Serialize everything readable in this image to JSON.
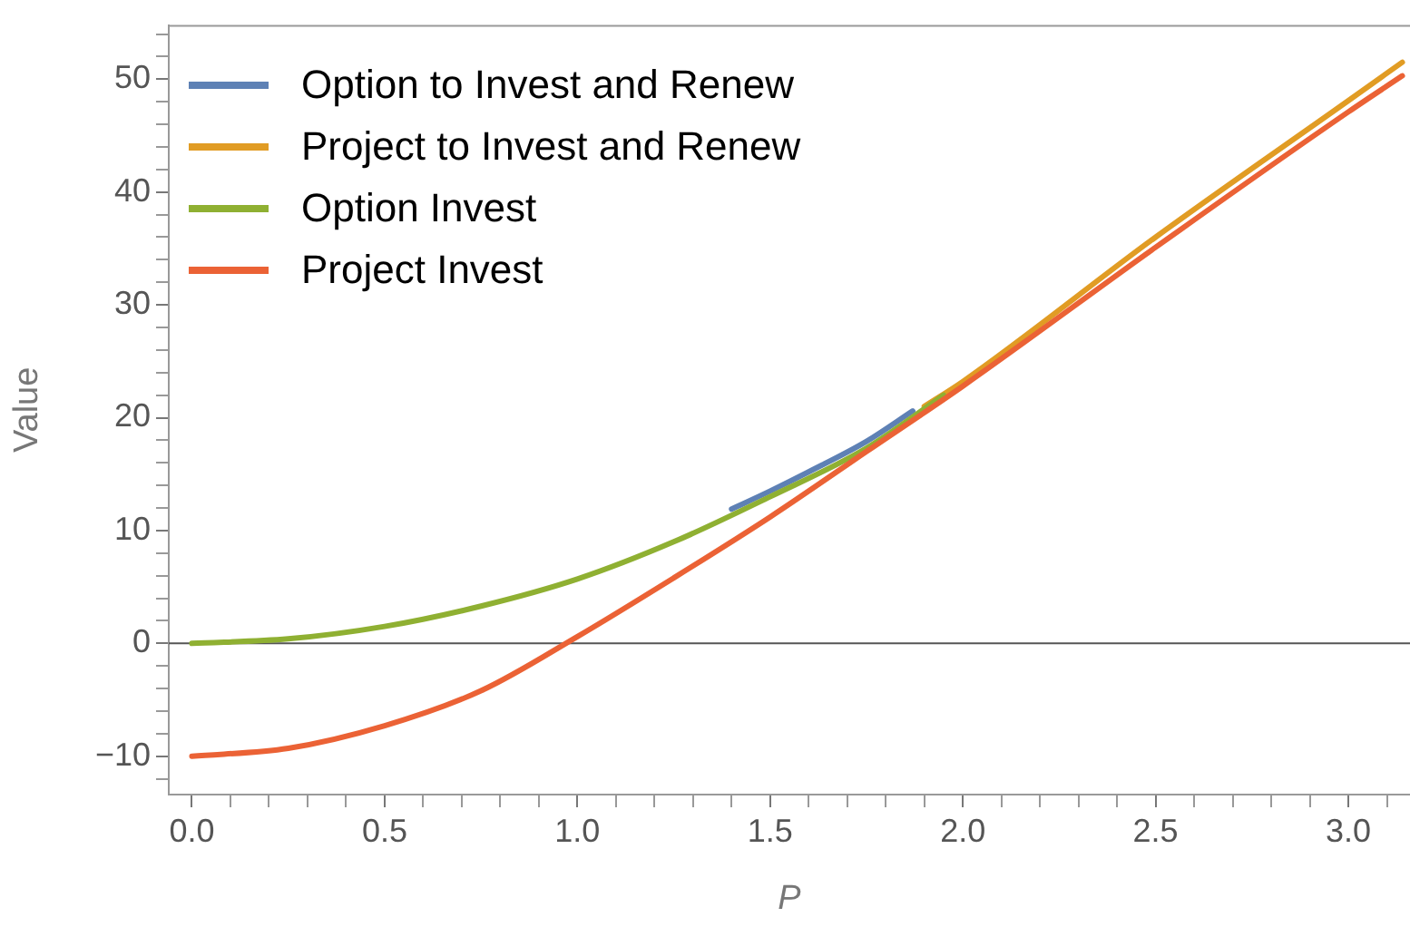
{
  "chart_data": {
    "type": "line",
    "xlabel": "P",
    "ylabel": "Value",
    "xlim": [
      -0.06,
      3.16
    ],
    "ylim": [
      -13.4,
      54.8
    ],
    "xticks": [
      {
        "value": 0,
        "label": "0.0"
      },
      {
        "value": 0.1,
        "label": null
      },
      {
        "value": 0.2,
        "label": null
      },
      {
        "value": 0.3,
        "label": null
      },
      {
        "value": 0.4,
        "label": null
      },
      {
        "value": 0.5,
        "label": "0.5"
      },
      {
        "value": 0.6,
        "label": null
      },
      {
        "value": 0.7,
        "label": null
      },
      {
        "value": 0.8,
        "label": null
      },
      {
        "value": 0.9,
        "label": null
      },
      {
        "value": 1,
        "label": "1.0"
      },
      {
        "value": 1.1,
        "label": null
      },
      {
        "value": 1.2,
        "label": null
      },
      {
        "value": 1.3,
        "label": null
      },
      {
        "value": 1.4,
        "label": null
      },
      {
        "value": 1.5,
        "label": "1.5"
      },
      {
        "value": 1.6,
        "label": null
      },
      {
        "value": 1.7,
        "label": null
      },
      {
        "value": 1.8,
        "label": null
      },
      {
        "value": 1.9,
        "label": null
      },
      {
        "value": 2,
        "label": "2.0"
      },
      {
        "value": 2.1,
        "label": null
      },
      {
        "value": 2.2,
        "label": null
      },
      {
        "value": 2.3,
        "label": null
      },
      {
        "value": 2.4,
        "label": null
      },
      {
        "value": 2.5,
        "label": "2.5"
      },
      {
        "value": 2.6,
        "label": null
      },
      {
        "value": 2.7,
        "label": null
      },
      {
        "value": 2.8,
        "label": null
      },
      {
        "value": 2.9,
        "label": null
      },
      {
        "value": 3,
        "label": "3.0"
      },
      {
        "value": 3.1,
        "label": null
      }
    ],
    "yticks": [
      {
        "value": -12,
        "label": null
      },
      {
        "value": -10,
        "label": "−10"
      },
      {
        "value": -8,
        "label": null
      },
      {
        "value": -6,
        "label": null
      },
      {
        "value": -4,
        "label": null
      },
      {
        "value": -2,
        "label": null
      },
      0,
      {
        "value": 2,
        "label": null
      },
      {
        "value": 4,
        "label": null
      },
      {
        "value": 6,
        "label": null
      },
      {
        "value": 8,
        "label": null
      },
      10,
      {
        "value": 12,
        "label": null
      },
      {
        "value": 14,
        "label": null
      },
      {
        "value": 16,
        "label": null
      },
      {
        "value": 18,
        "label": null
      },
      20,
      {
        "value": 22,
        "label": null
      },
      {
        "value": 24,
        "label": null
      },
      {
        "value": 26,
        "label": null
      },
      {
        "value": 28,
        "label": null
      },
      30,
      {
        "value": 32,
        "label": null
      },
      {
        "value": 34,
        "label": null
      },
      {
        "value": 36,
        "label": null
      },
      {
        "value": 38,
        "label": null
      },
      40,
      {
        "value": 42,
        "label": null
      },
      {
        "value": 44,
        "label": null
      },
      {
        "value": 46,
        "label": null
      },
      {
        "value": 48,
        "label": null
      },
      50,
      {
        "value": 52,
        "label": null
      },
      {
        "value": 54,
        "label": null
      }
    ],
    "grid": false,
    "legend": "top left",
    "marker": "none",
    "line_style": "solid",
    "ref_lines": [
      {
        "axis": "y",
        "value": 0,
        "color": "#555555"
      }
    ],
    "series": [
      {
        "name": "Option to Invest and Renew",
        "color": "#5e81b5",
        "x": [
          1.4,
          1.5,
          1.6,
          1.75,
          1.87
        ],
        "values": [
          11.9,
          13.5,
          15.2,
          17.9,
          20.6
        ]
      },
      {
        "name": "Project to Invest and Renew",
        "color": "#e19c24",
        "x": [
          1.9,
          2,
          2.5,
          3,
          3.14
        ],
        "values": [
          21.0,
          23.2,
          36.0,
          48.1,
          51.5
        ]
      },
      {
        "name": "Option Invest",
        "color": "#8fb032",
        "x": [
          0,
          0.25,
          0.5,
          0.75,
          1,
          1.25,
          1.5,
          1.75,
          1.95
        ],
        "values": [
          0,
          0.4,
          1.5,
          3.3,
          5.7,
          9.0,
          13.0,
          17.3,
          22.0
        ]
      },
      {
        "name": "Project Invest",
        "color": "#eb6235",
        "x": [
          0,
          0.25,
          0.5,
          0.75,
          1,
          1.25,
          1.5,
          1.75,
          2,
          2.5,
          3,
          3.14
        ],
        "values": [
          -10,
          -9.3,
          -7.3,
          -4.2,
          0.6,
          5.8,
          11.2,
          17.0,
          22.8,
          35.1,
          47.1,
          50.3
        ]
      }
    ]
  }
}
